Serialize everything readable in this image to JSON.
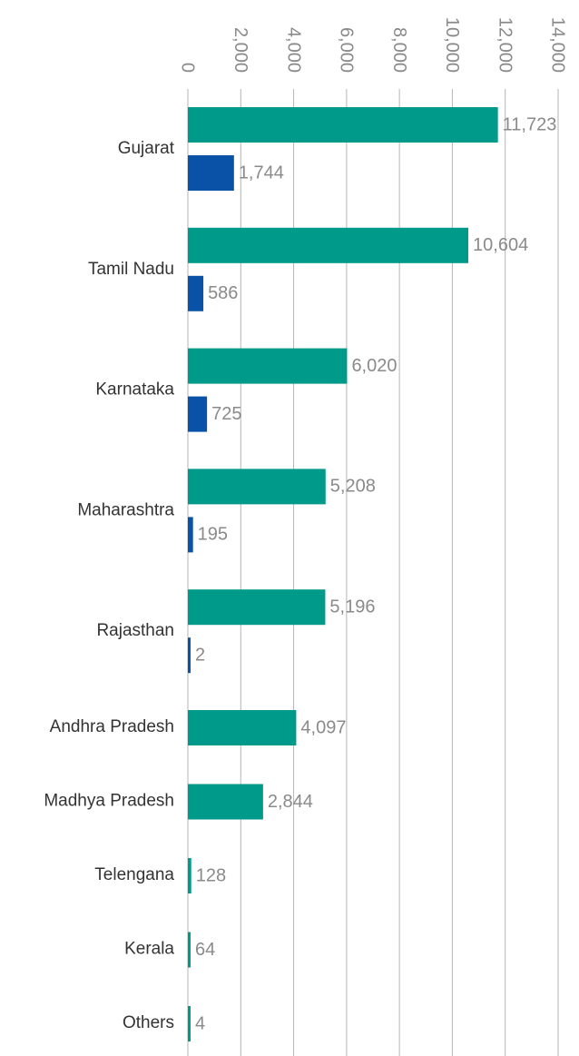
{
  "chart_data": {
    "type": "bar",
    "orientation": "horizontal",
    "categories": [
      "Gujarat",
      "Tamil Nadu",
      "Karnataka",
      "Maharashtra",
      "Rajasthan",
      "Andhra Pradesh",
      "Madhya Pradesh",
      "Telengana",
      "Kerala",
      "Others"
    ],
    "series": [
      {
        "color": "#009a8a",
        "values": [
          11723,
          10604,
          6020,
          5208,
          5196,
          4097,
          2844,
          128,
          64,
          4
        ],
        "value_labels": [
          "11,723",
          "10,604",
          "6,020",
          "5,208",
          "5,196",
          "4,097",
          "2,844",
          "128",
          "64",
          "4"
        ]
      },
      {
        "color": "#0a52a8",
        "values": [
          1744,
          586,
          725,
          195,
          2,
          null,
          null,
          null,
          null,
          null
        ],
        "value_labels": [
          "1,744",
          "586",
          "725",
          "195",
          "2",
          null,
          null,
          null,
          null,
          null
        ]
      }
    ],
    "xlim": [
      0,
      14000
    ],
    "xticks": [
      0,
      {
        "value": 2000,
        "label": "2,000"
      },
      {
        "value": 4000,
        "label": "4,000"
      },
      {
        "value": 6000,
        "label": "6,000"
      },
      {
        "value": 8000,
        "label": "8,000"
      },
      {
        "value": 10000,
        "label": "10,000"
      },
      {
        "value": 12000,
        "label": "12,000"
      },
      {
        "value": 14000,
        "label": "14,000"
      }
    ],
    "grid": true
  }
}
